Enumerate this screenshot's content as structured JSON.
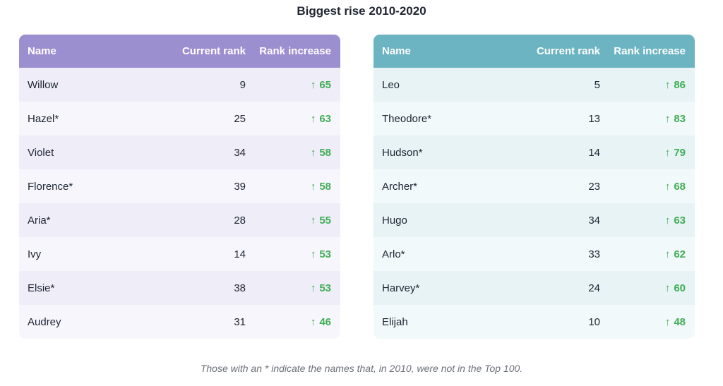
{
  "title": "Biggest rise 2010-2020",
  "colors": {
    "girls_header": "#9b8fd0",
    "boys_header": "#6cb4c2",
    "increase": "#3fae55"
  },
  "headers": {
    "name": "Name",
    "rank": "Current rank",
    "increase": "Rank increase"
  },
  "arrow_icon": "arrow-up-icon",
  "arrow_glyph": "↑",
  "chart_data": [
    {
      "type": "table",
      "columns": [
        "Name",
        "Current rank",
        "Rank increase"
      ],
      "rows": [
        {
          "name": "Willow",
          "rank": "9",
          "increase": "65"
        },
        {
          "name": "Hazel*",
          "rank": "25",
          "increase": "63"
        },
        {
          "name": "Violet",
          "rank": "34",
          "increase": "58"
        },
        {
          "name": "Florence*",
          "rank": "39",
          "increase": "58"
        },
        {
          "name": "Aria*",
          "rank": "28",
          "increase": "55"
        },
        {
          "name": "Ivy",
          "rank": "14",
          "increase": "53"
        },
        {
          "name": "Elsie*",
          "rank": "38",
          "increase": "53"
        },
        {
          "name": "Audrey",
          "rank": "31",
          "increase": "46"
        }
      ]
    },
    {
      "type": "table",
      "columns": [
        "Name",
        "Current rank",
        "Rank increase"
      ],
      "rows": [
        {
          "name": "Leo",
          "rank": "5",
          "increase": "86"
        },
        {
          "name": "Theodore*",
          "rank": "13",
          "increase": "83"
        },
        {
          "name": "Hudson*",
          "rank": "14",
          "increase": "79"
        },
        {
          "name": "Archer*",
          "rank": "23",
          "increase": "68"
        },
        {
          "name": "Hugo",
          "rank": "34",
          "increase": "63"
        },
        {
          "name": "Arlo*",
          "rank": "33",
          "increase": "62"
        },
        {
          "name": "Harvey*",
          "rank": "24",
          "increase": "60"
        },
        {
          "name": "Elijah",
          "rank": "10",
          "increase": "48"
        }
      ]
    }
  ],
  "footnote": "Those with an * indicate the names that, in 2010, were not in the Top 100."
}
